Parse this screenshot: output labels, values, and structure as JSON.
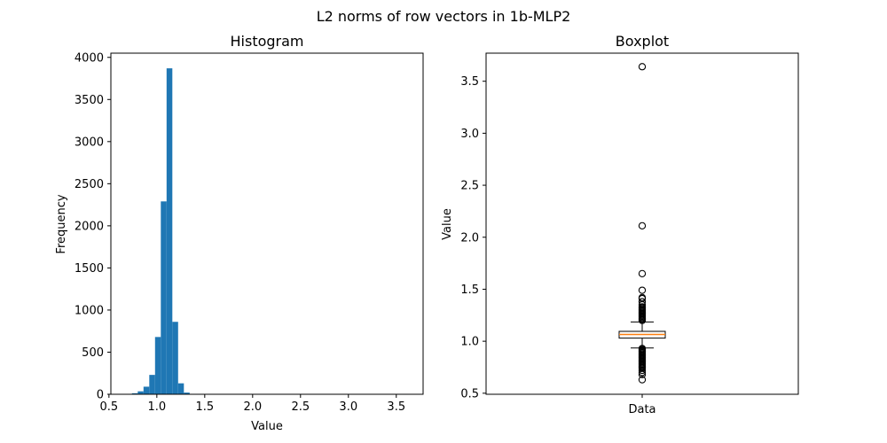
{
  "figure": {
    "title": "L2 norms of row vectors in 1b-MLP2"
  },
  "chart_data": [
    {
      "type": "histogram",
      "title": "Histogram",
      "xlabel": "Value",
      "ylabel": "Frequency",
      "xlim": [
        0.52,
        3.78
      ],
      "ylim": [
        0,
        4050
      ],
      "xticks": [
        {
          "value": 0.5,
          "label": "0.5"
        },
        {
          "value": 1.0,
          "label": "1.0"
        },
        {
          "value": 1.5,
          "label": "1.5"
        },
        {
          "value": 2.0,
          "label": "2.0"
        },
        {
          "value": 2.5,
          "label": "2.5"
        },
        {
          "value": 3.0,
          "label": "3.0"
        },
        {
          "value": 3.5,
          "label": "3.5"
        }
      ],
      "yticks": [
        {
          "value": 0,
          "label": "0"
        },
        {
          "value": 500,
          "label": "500"
        },
        {
          "value": 1000,
          "label": "1000"
        },
        {
          "value": 1500,
          "label": "1500"
        },
        {
          "value": 2000,
          "label": "2000"
        },
        {
          "value": 2500,
          "label": "2500"
        },
        {
          "value": 3000,
          "label": "3000"
        },
        {
          "value": 3500,
          "label": "3500"
        },
        {
          "value": 4000,
          "label": "4000"
        }
      ],
      "bar_color": "#1f77b4",
      "bin_start": 0.62,
      "bin_width": 0.0602,
      "counts": [
        2,
        5,
        12,
        35,
        90,
        230,
        680,
        2290,
        3870,
        860,
        130,
        20,
        4,
        1,
        0,
        0,
        0,
        0,
        0,
        0,
        0,
        1,
        0,
        0,
        0,
        0,
        0,
        0,
        0,
        0,
        0,
        0,
        0,
        0,
        0,
        0,
        0,
        0,
        0,
        0,
        0,
        0,
        0,
        0,
        0,
        0,
        0,
        0,
        0,
        1
      ],
      "grid": false,
      "legend": false
    },
    {
      "type": "boxplot",
      "title": "Boxplot",
      "xlabel": "",
      "ylabel": "Value",
      "categories": [
        "Data"
      ],
      "ylim": [
        0.49,
        3.77
      ],
      "yticks": [
        {
          "value": 0.5,
          "label": "0.5"
        },
        {
          "value": 1.0,
          "label": "1.0"
        },
        {
          "value": 1.5,
          "label": "1.5"
        },
        {
          "value": 2.0,
          "label": "2.0"
        },
        {
          "value": 2.5,
          "label": "2.5"
        },
        {
          "value": 3.0,
          "label": "3.0"
        },
        {
          "value": 3.5,
          "label": "3.5"
        }
      ],
      "box": {
        "median": 1.065,
        "q1": 1.03,
        "q3": 1.095,
        "whisker_low": 0.935,
        "whisker_high": 1.185
      },
      "median_color": "#ff7f0e",
      "outliers": [
        3.64,
        2.11,
        1.65,
        1.49,
        1.42,
        1.41,
        1.38,
        1.35,
        1.33,
        1.32,
        1.31,
        1.3,
        1.29,
        1.28,
        1.27,
        1.26,
        1.25,
        1.24,
        1.23,
        1.22,
        1.21,
        1.2,
        0.93,
        0.92,
        0.91,
        0.9,
        0.89,
        0.88,
        0.87,
        0.86,
        0.85,
        0.84,
        0.83,
        0.82,
        0.81,
        0.8,
        0.79,
        0.78,
        0.77,
        0.76,
        0.75,
        0.74,
        0.72,
        0.7,
        0.68,
        0.63
      ],
      "grid": false,
      "legend": false
    }
  ]
}
